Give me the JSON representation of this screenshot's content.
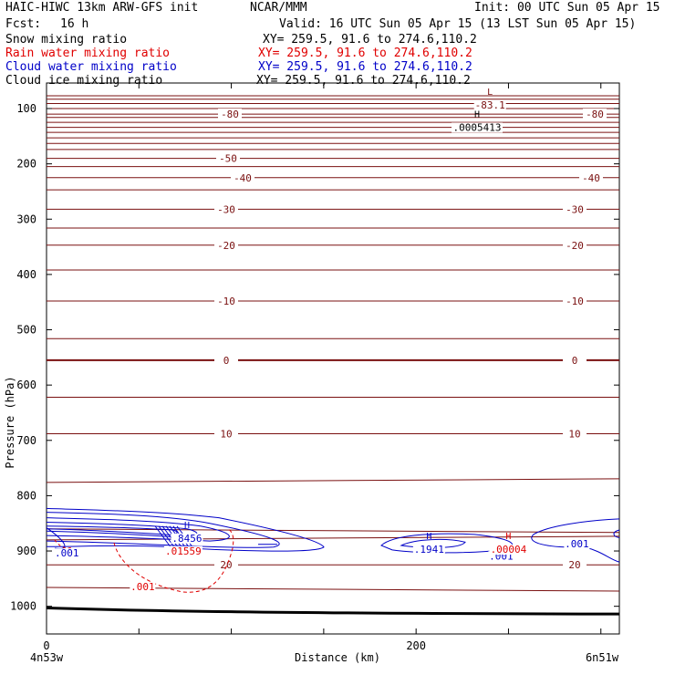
{
  "header": {
    "model": "HAIC-HIWC 13km ARW-GFS init",
    "org": "NCAR/MMM",
    "init": "Init: 00 UTC Sun 05 Apr 15",
    "fcst_label": "Fcst:",
    "fcst_value": "16 h",
    "valid": "Valid: 16 UTC Sun 05 Apr 15 (13 LST Sun 05 Apr 15)"
  },
  "fields": [
    {
      "name": "Snow mixing ratio",
      "xy": "XY= 259.5, 91.6 to 274.6,110.2",
      "color": "#000000"
    },
    {
      "name": "Rain water mixing ratio",
      "xy": "XY= 259.5, 91.6 to 274.6,110.2",
      "color": "#e00000"
    },
    {
      "name": "Cloud water mixing ratio",
      "xy": "XY= 259.5, 91.6 to 274.6,110.2",
      "color": "#0000c8"
    },
    {
      "name": "Cloud ice mixing ratio",
      "xy": "XY= 259.5, 91.6 to 274.6,110.2",
      "color": "#000000"
    }
  ],
  "chart_data": {
    "type": "line",
    "xlabel": "Distance (km)",
    "ylabel": "Pressure (hPa)",
    "xlim": [
      0,
      310
    ],
    "ylim": [
      1050,
      50
    ],
    "x_ticks": [
      0,
      200
    ],
    "y_ticks": [
      100,
      200,
      300,
      400,
      500,
      600,
      700,
      800,
      900,
      1000
    ],
    "endpoint_labels": {
      "left": "4n53w",
      "right": "6n51w"
    },
    "temperature_contours": {
      "color": "#7a1010",
      "labeled": [
        {
          "value": -80,
          "p": 110,
          "labels": [
            -80,
            -80
          ]
        },
        {
          "value": -50,
          "p": 190,
          "labels": [
            -50
          ]
        },
        {
          "value": -40,
          "p": 225,
          "labels": [
            -40,
            -40
          ]
        },
        {
          "value": -30,
          "p": 282,
          "labels": [
            -30,
            -30
          ]
        },
        {
          "value": -20,
          "p": 347,
          "labels": [
            -20,
            -20
          ]
        },
        {
          "value": -10,
          "p": 448,
          "labels": [
            -10,
            -10
          ]
        },
        {
          "value": 0,
          "p": 555,
          "labels": [
            0,
            0
          ]
        },
        {
          "value": 10,
          "p": 688,
          "labels": [
            10,
            10
          ]
        },
        {
          "value": 20,
          "p": 925,
          "labels": [
            20,
            20
          ]
        }
      ],
      "unlabeled_p": [
        77,
        83,
        91,
        100,
        116,
        125,
        134,
        143,
        153,
        163,
        174,
        205,
        247,
        316,
        392,
        516,
        622,
        776,
        860,
        880,
        966
      ]
    },
    "annotations": [
      {
        "text": "L",
        "value": "-83.1",
        "x": 240,
        "p": 87,
        "color": "#7a1010"
      },
      {
        "text": "H",
        "value": ".0005413",
        "x": 233,
        "p": 127,
        "color": "#000000"
      },
      {
        "text": "H",
        "value": ".8456",
        "x": 76,
        "p": 870,
        "color": "#0000c8"
      },
      {
        "text": "",
        "value": ".01559",
        "x": 74,
        "p": 893,
        "color": "#e00000"
      },
      {
        "text": "",
        "value": ".001",
        "x": 11,
        "p": 897,
        "color": "#0000c8"
      },
      {
        "text": "",
        "value": ".001",
        "x": 52,
        "p": 958,
        "color": "#e00000"
      },
      {
        "text": "H",
        "value": ".1941",
        "x": 207,
        "p": 890,
        "color": "#0000c8"
      },
      {
        "text": "",
        "value": ".001",
        "x": 246,
        "p": 902,
        "color": "#0000c8"
      },
      {
        "text": "H",
        "value": ".00004",
        "x": 250,
        "p": 890,
        "color": "#e00000"
      },
      {
        "text": "",
        "value": ".001",
        "x": 287,
        "p": 880,
        "color": "#0000c8"
      }
    ]
  }
}
